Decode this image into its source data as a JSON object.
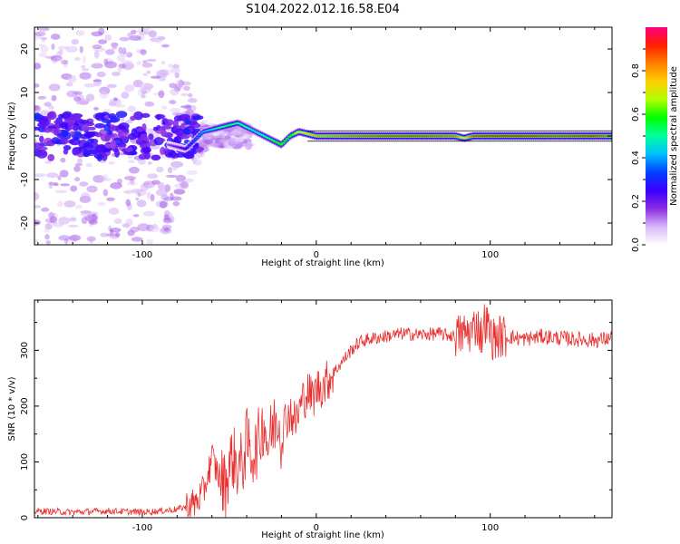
{
  "figure": {
    "title": "S104.2022.012.16.58.E04"
  },
  "chart_data": [
    {
      "type": "heatmap",
      "title": "S104.2022.012.16.58.E04",
      "xlabel": "Height of straight line (km)",
      "ylabel": "Frequency (Hz)",
      "xlim": [
        -162,
        170
      ],
      "ylim": [
        -25,
        25
      ],
      "xticks": [
        -100,
        0,
        100
      ],
      "yticks": [
        -20,
        -10,
        0,
        10,
        20
      ],
      "grid": false,
      "colorbar": {
        "label": "Normalized spectral amplitude",
        "range": [
          0,
          1
        ],
        "ticks": [
          0.0,
          0.2,
          0.4,
          0.6,
          0.8
        ],
        "colormap": [
          "#ffffff",
          "#d8b8f8",
          "#8a2be2",
          "#3a00ff",
          "#0040ff",
          "#00c0ff",
          "#00ffa0",
          "#00ff00",
          "#b0ff00",
          "#ffd000",
          "#ff8000",
          "#ff2000",
          "#ff0080"
        ]
      },
      "ridge": {
        "description_x": [
          -85,
          -75,
          -70,
          -65,
          -60,
          -55,
          -50,
          -45,
          -40,
          -35,
          -30,
          -25,
          -20,
          -15,
          -10,
          -5,
          0,
          20,
          40,
          60,
          80,
          85,
          90,
          100,
          120,
          140,
          160,
          170
        ],
        "frequency_hz": [
          -2,
          -3,
          -1,
          1,
          1.5,
          2,
          2.5,
          3,
          2,
          1,
          0,
          -1,
          -2,
          0,
          1,
          0.5,
          0,
          0,
          0,
          0,
          0,
          -0.5,
          0,
          0,
          0,
          0,
          0,
          0
        ],
        "peak_amplitude": [
          0.15,
          0.25,
          0.35,
          0.4,
          0.45,
          0.5,
          0.55,
          0.5,
          0.5,
          0.45,
          0.5,
          0.55,
          0.6,
          0.55,
          0.7,
          0.75,
          0.8,
          0.85,
          0.88,
          0.88,
          0.85,
          0.7,
          0.88,
          0.9,
          0.9,
          0.88,
          0.9,
          0.85
        ]
      }
    },
    {
      "type": "line",
      "title": "",
      "xlabel": "Height of straight line (km)",
      "ylabel": "SNR (10 * v/v)",
      "xlim": [
        -162,
        170
      ],
      "ylim": [
        0,
        390
      ],
      "xticks": [
        -100,
        0,
        100
      ],
      "yticks": [
        0,
        100,
        200,
        300
      ],
      "grid": false,
      "series": [
        {
          "color": "#e83030",
          "x": [
            -162,
            -140,
            -120,
            -100,
            -90,
            -80,
            -75,
            -70,
            -65,
            -62,
            -60,
            -58,
            -55,
            -52,
            -50,
            -48,
            -45,
            -42,
            -40,
            -38,
            -35,
            -32,
            -30,
            -28,
            -25,
            -22,
            -20,
            -18,
            -15,
            -12,
            -10,
            -8,
            -5,
            -2,
            0,
            5,
            10,
            15,
            20,
            25,
            30,
            40,
            50,
            60,
            70,
            80,
            85,
            90,
            92,
            95,
            97,
            100,
            102,
            105,
            110,
            120,
            130,
            140,
            150,
            160,
            170
          ],
          "y": [
            12,
            10,
            12,
            10,
            12,
            15,
            20,
            25,
            45,
            80,
            110,
            90,
            70,
            60,
            95,
            110,
            90,
            100,
            140,
            115,
            120,
            150,
            175,
            130,
            160,
            185,
            140,
            175,
            190,
            170,
            190,
            210,
            225,
            215,
            230,
            240,
            260,
            280,
            300,
            315,
            320,
            325,
            330,
            328,
            330,
            325,
            330,
            335,
            350,
            325,
            355,
            330,
            320,
            325,
            325,
            320,
            325,
            322,
            320,
            318,
            322
          ]
        }
      ]
    }
  ]
}
